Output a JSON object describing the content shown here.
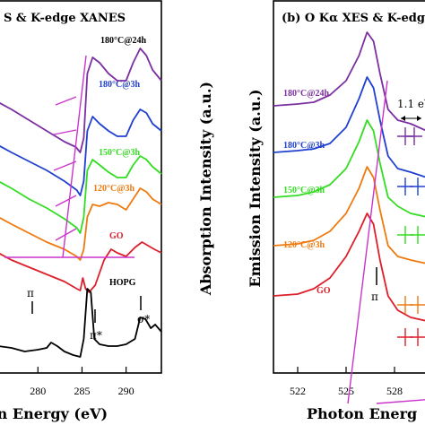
{
  "chart_data": [
    {
      "type": "line",
      "title": "S & K-edge XANES",
      "xlabel": "on Energy (eV)",
      "ylabel": "Absorption Intensity (a.u.)",
      "xlim": [
        275.5,
        294
      ],
      "xticks": [
        280,
        285,
        290
      ],
      "grid": false,
      "series": [
        {
          "name": "180°C@24h",
          "color": "#7b2fa0",
          "points": [
            [
              275.5,
              0.74
            ],
            [
              277,
              0.72
            ],
            [
              279,
              0.69
            ],
            [
              281,
              0.66
            ],
            [
              283,
              0.63
            ],
            [
              284.3,
              0.615
            ],
            [
              284.8,
              0.6
            ],
            [
              285.2,
              0.64
            ],
            [
              285.6,
              0.82
            ],
            [
              286.2,
              0.865
            ],
            [
              287,
              0.85
            ],
            [
              288,
              0.82
            ],
            [
              289,
              0.8
            ],
            [
              290,
              0.8
            ],
            [
              290.8,
              0.85
            ],
            [
              291.6,
              0.89
            ],
            [
              292.3,
              0.87
            ],
            [
              293,
              0.83
            ],
            [
              294,
              0.8
            ]
          ]
        },
        {
          "name": "180°C@3h",
          "color": "#2040d0",
          "points": [
            [
              275.5,
              0.62
            ],
            [
              277,
              0.6
            ],
            [
              279,
              0.575
            ],
            [
              281,
              0.55
            ],
            [
              283,
              0.52
            ],
            [
              284.4,
              0.495
            ],
            [
              284.8,
              0.48
            ],
            [
              285.2,
              0.52
            ],
            [
              285.6,
              0.66
            ],
            [
              286.2,
              0.7
            ],
            [
              287,
              0.68
            ],
            [
              288,
              0.66
            ],
            [
              289,
              0.645
            ],
            [
              290,
              0.645
            ],
            [
              290.8,
              0.69
            ],
            [
              291.6,
              0.72
            ],
            [
              292.3,
              0.71
            ],
            [
              293,
              0.68
            ],
            [
              294,
              0.66
            ]
          ]
        },
        {
          "name": "150°C@3h",
          "color": "#33dd22",
          "points": [
            [
              275.5,
              0.52
            ],
            [
              277,
              0.5
            ],
            [
              279,
              0.47
            ],
            [
              281,
              0.445
            ],
            [
              283,
              0.415
            ],
            [
              284.4,
              0.39
            ],
            [
              284.8,
              0.375
            ],
            [
              285.2,
              0.42
            ],
            [
              285.6,
              0.55
            ],
            [
              286.2,
              0.58
            ],
            [
              287,
              0.565
            ],
            [
              288,
              0.545
            ],
            [
              289,
              0.53
            ],
            [
              290,
              0.53
            ],
            [
              290.8,
              0.565
            ],
            [
              291.6,
              0.59
            ],
            [
              292.3,
              0.58
            ],
            [
              293,
              0.56
            ],
            [
              294,
              0.54
            ]
          ]
        },
        {
          "name": "120°C@3h",
          "color": "#ee7a10",
          "points": [
            [
              275.5,
              0.42
            ],
            [
              277,
              0.4
            ],
            [
              279,
              0.375
            ],
            [
              281,
              0.35
            ],
            [
              283,
              0.33
            ],
            [
              284.4,
              0.31
            ],
            [
              284.8,
              0.3
            ],
            [
              285.2,
              0.33
            ],
            [
              285.6,
              0.42
            ],
            [
              286.2,
              0.455
            ],
            [
              287,
              0.45
            ],
            [
              288,
              0.46
            ],
            [
              289,
              0.455
            ],
            [
              290,
              0.44
            ],
            [
              290.8,
              0.47
            ],
            [
              291.6,
              0.5
            ],
            [
              292.3,
              0.49
            ],
            [
              293,
              0.47
            ],
            [
              294,
              0.455
            ]
          ]
        },
        {
          "name": "GO",
          "color": "#dd1f2a",
          "points": [
            [
              275.5,
              0.32
            ],
            [
              277,
              0.3
            ],
            [
              279,
              0.28
            ],
            [
              281,
              0.26
            ],
            [
              283,
              0.24
            ],
            [
              284.4,
              0.22
            ],
            [
              284.8,
              0.215
            ],
            [
              285.1,
              0.25
            ],
            [
              285.4,
              0.22
            ],
            [
              285.8,
              0.21
            ],
            [
              286.5,
              0.23
            ],
            [
              287.5,
              0.3
            ],
            [
              288.3,
              0.33
            ],
            [
              289,
              0.32
            ],
            [
              290,
              0.31
            ],
            [
              291,
              0.335
            ],
            [
              291.8,
              0.35
            ],
            [
              292.5,
              0.34
            ],
            [
              293.2,
              0.33
            ],
            [
              294,
              0.32
            ]
          ]
        },
        {
          "name": "HOPG",
          "color": "#000000",
          "points": [
            [
              275.5,
              0.06
            ],
            [
              277,
              0.055
            ],
            [
              278.5,
              0.045
            ],
            [
              280,
              0.05
            ],
            [
              281,
              0.055
            ],
            [
              281.5,
              0.07
            ],
            [
              282.2,
              0.06
            ],
            [
              283,
              0.045
            ],
            [
              284,
              0.035
            ],
            [
              284.8,
              0.03
            ],
            [
              285.2,
              0.08
            ],
            [
              285.6,
              0.22
            ],
            [
              286,
              0.21
            ],
            [
              286.4,
              0.08
            ],
            [
              287,
              0.065
            ],
            [
              288,
              0.06
            ],
            [
              289,
              0.06
            ],
            [
              290,
              0.065
            ],
            [
              291,
              0.08
            ],
            [
              291.6,
              0.14
            ],
            [
              292.2,
              0.135
            ],
            [
              292.8,
              0.11
            ],
            [
              293.3,
              0.12
            ],
            [
              294,
              0.1
            ]
          ]
        }
      ],
      "peak_labels": [
        "π",
        "π*",
        "σ*"
      ]
    },
    {
      "type": "line",
      "title": "(b) O Kα XES & K-edge",
      "xlabel": "Photon Energ",
      "ylabel": "Emission Intensity (a.u.)",
      "xlim": [
        520.5,
        530.5
      ],
      "xticks": [
        522,
        525,
        528
      ],
      "grid": false,
      "annotation": "1.1 eV",
      "series": [
        {
          "name": "180°C@24h",
          "color": "#7b2fa0",
          "points": [
            [
              520.5,
              0.73
            ],
            [
              522,
              0.735
            ],
            [
              523,
              0.74
            ],
            [
              524,
              0.76
            ],
            [
              525,
              0.8
            ],
            [
              525.8,
              0.87
            ],
            [
              526.3,
              0.935
            ],
            [
              526.7,
              0.91
            ],
            [
              527.1,
              0.82
            ],
            [
              527.6,
              0.72
            ],
            [
              528.2,
              0.69
            ],
            [
              529,
              0.68
            ],
            [
              530,
              0.66
            ],
            [
              530.5,
              0.65
            ]
          ]
        },
        {
          "name": "180°C@3h",
          "color": "#2040d0",
          "points": [
            [
              520.5,
              0.6
            ],
            [
              522,
              0.605
            ],
            [
              523,
              0.61
            ],
            [
              524,
              0.625
            ],
            [
              525,
              0.67
            ],
            [
              525.8,
              0.75
            ],
            [
              526.3,
              0.81
            ],
            [
              526.7,
              0.78
            ],
            [
              527.1,
              0.69
            ],
            [
              527.6,
              0.59
            ],
            [
              528.2,
              0.555
            ],
            [
              529,
              0.545
            ],
            [
              530,
              0.53
            ],
            [
              530.5,
              0.52
            ]
          ]
        },
        {
          "name": "150°C@3h",
          "color": "#33dd22",
          "points": [
            [
              520.5,
              0.475
            ],
            [
              522,
              0.48
            ],
            [
              523,
              0.49
            ],
            [
              524,
              0.51
            ],
            [
              525,
              0.555
            ],
            [
              525.8,
              0.63
            ],
            [
              526.3,
              0.69
            ],
            [
              526.7,
              0.66
            ],
            [
              527.1,
              0.57
            ],
            [
              527.6,
              0.475
            ],
            [
              528.2,
              0.45
            ],
            [
              529,
              0.43
            ],
            [
              530,
              0.42
            ],
            [
              530.5,
              0.41
            ]
          ]
        },
        {
          "name": "120°C@3h",
          "color": "#ee7a10",
          "points": [
            [
              520.5,
              0.34
            ],
            [
              522,
              0.345
            ],
            [
              523,
              0.355
            ],
            [
              524,
              0.38
            ],
            [
              525,
              0.43
            ],
            [
              525.8,
              0.5
            ],
            [
              526.3,
              0.56
            ],
            [
              526.7,
              0.53
            ],
            [
              527.1,
              0.44
            ],
            [
              527.6,
              0.34
            ],
            [
              528.2,
              0.31
            ],
            [
              529,
              0.3
            ],
            [
              530,
              0.29
            ],
            [
              530.5,
              0.28
            ]
          ]
        },
        {
          "name": "GO",
          "color": "#dd1f2a",
          "points": [
            [
              520.5,
              0.2
            ],
            [
              522,
              0.205
            ],
            [
              523,
              0.22
            ],
            [
              524,
              0.25
            ],
            [
              525,
              0.31
            ],
            [
              525.8,
              0.38
            ],
            [
              526.3,
              0.43
            ],
            [
              526.7,
              0.4
            ],
            [
              527.1,
              0.3
            ],
            [
              527.6,
              0.2
            ],
            [
              528.2,
              0.16
            ],
            [
              529,
              0.14
            ],
            [
              530,
              0.13
            ],
            [
              530.5,
              0.12
            ]
          ]
        }
      ],
      "peak_labels": [
        "π"
      ]
    }
  ]
}
